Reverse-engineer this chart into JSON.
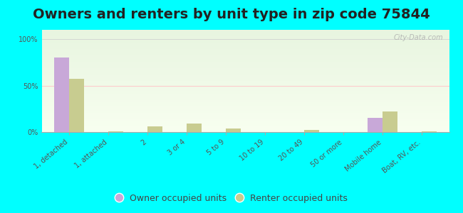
{
  "title": "Owners and renters by unit type in zip code 75844",
  "categories": [
    "1, detached",
    "1, attached",
    "2",
    "3 or 4",
    "5 to 9",
    "10 to 19",
    "20 to 49",
    "50 or more",
    "Mobile home",
    "Boat, RV, etc."
  ],
  "owner_values": [
    80,
    0,
    0,
    0,
    0,
    0,
    0,
    0,
    15,
    0
  ],
  "renter_values": [
    57,
    1,
    6,
    9,
    4,
    0,
    2,
    0,
    22,
    1
  ],
  "owner_color": "#c8a8d8",
  "renter_color": "#c8cc90",
  "background_color": "#00ffff",
  "ylabel_ticks": [
    "0%",
    "50%",
    "100%"
  ],
  "yticks": [
    0,
    50,
    100
  ],
  "ylim": [
    0,
    110
  ],
  "title_fontsize": 14,
  "tick_fontsize": 7,
  "legend_fontsize": 9,
  "bar_width": 0.38,
  "watermark": "City-Data.com"
}
